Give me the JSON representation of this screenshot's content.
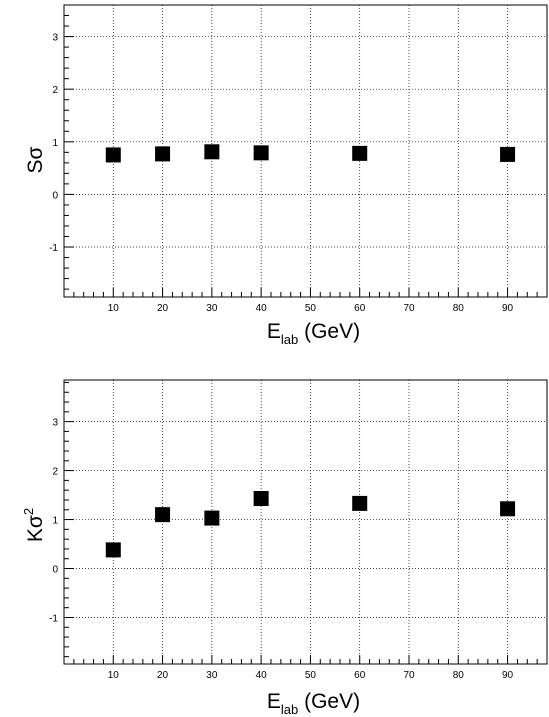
{
  "chart_data": [
    {
      "type": "scatter",
      "xlabel": {
        "main": "E",
        "sub": "lab",
        "rest": " (GeV)"
      },
      "ylabel": {
        "main": "Sσ",
        "sup": ""
      },
      "xlim": [
        0,
        98
      ],
      "ylim": [
        -1.95,
        3.6
      ],
      "xticks": [
        10,
        20,
        30,
        40,
        50,
        60,
        70,
        80,
        90
      ],
      "yticks": [
        -1,
        0,
        1,
        2,
        3
      ],
      "grid": true,
      "series": [
        {
          "x": [
            10,
            20,
            30,
            40,
            60,
            90
          ],
          "y": [
            0.75,
            0.77,
            0.81,
            0.79,
            0.78,
            0.76
          ]
        }
      ]
    },
    {
      "type": "scatter",
      "xlabel": {
        "main": "E",
        "sub": "lab",
        "rest": " (GeV)"
      },
      "ylabel": {
        "main": "Kσ",
        "sup": "2"
      },
      "xlim": [
        0,
        98
      ],
      "ylim": [
        -1.95,
        3.85
      ],
      "xticks": [
        10,
        20,
        30,
        40,
        50,
        60,
        70,
        80,
        90
      ],
      "yticks": [
        -1,
        0,
        1,
        2,
        3
      ],
      "grid": true,
      "series": [
        {
          "x": [
            10,
            20,
            30,
            40,
            60,
            90
          ],
          "y": [
            0.38,
            1.1,
            1.03,
            1.43,
            1.33,
            1.22
          ]
        }
      ]
    }
  ]
}
